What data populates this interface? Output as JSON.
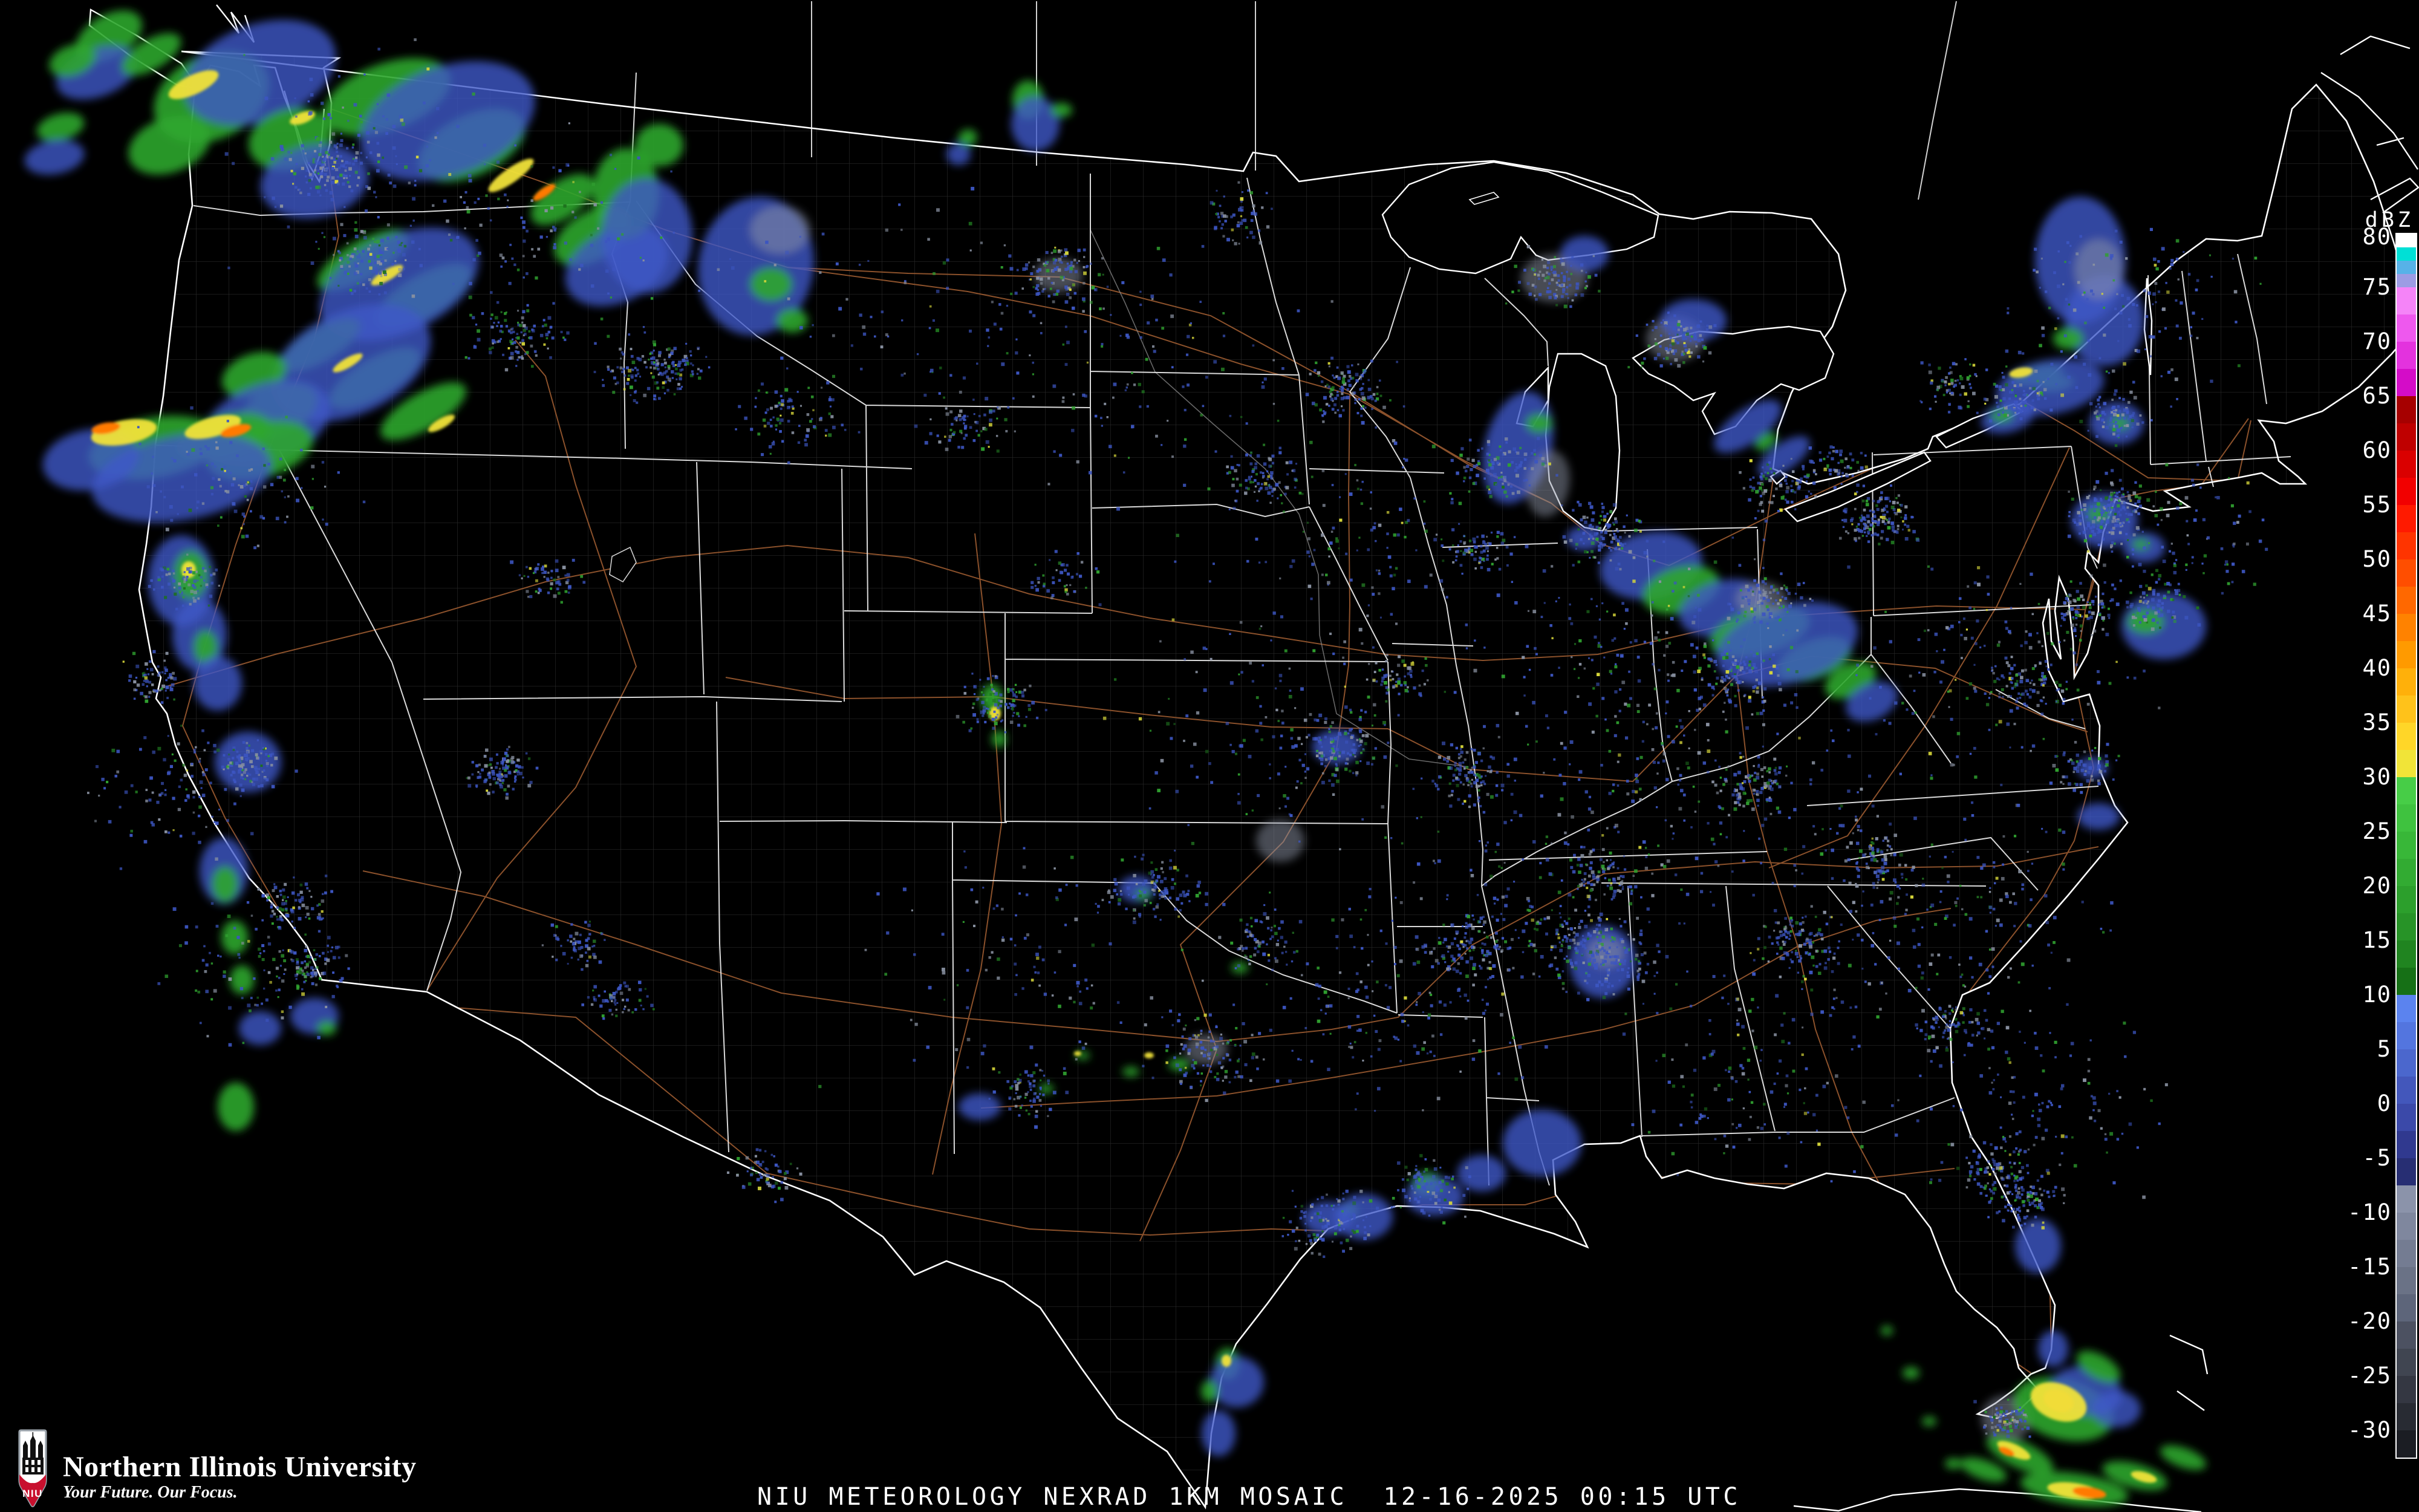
{
  "caption": {
    "text": "NIU METEOROLOGY NEXRAD 1KM MOSAIC  12-16-2025 00:15 UTC"
  },
  "branding": {
    "institution": "Northern Illinois University",
    "tagline": "Your Future. Our Focus.",
    "monogram": "NIU"
  },
  "colorbar": {
    "label": "dBZ",
    "ticks": [
      80,
      75,
      70,
      65,
      60,
      55,
      50,
      45,
      40,
      35,
      30,
      25,
      20,
      15,
      10,
      5,
      0,
      -5,
      -10,
      -15,
      -20,
      -25,
      -30
    ],
    "segments": [
      {
        "color": "#ffffff",
        "h": 22
      },
      {
        "color": "#00e0d6",
        "h": 22
      },
      {
        "color": "#57b2e8",
        "h": 22
      },
      {
        "color": "#9c9ce4",
        "h": 22
      },
      {
        "color": "#f584f8",
        "h": 45
      },
      {
        "color": "#ee58ee",
        "h": 45
      },
      {
        "color": "#e332de",
        "h": 45
      },
      {
        "color": "#d40cc8",
        "h": 45
      },
      {
        "color": "#a60000",
        "h": 45
      },
      {
        "color": "#bf0000",
        "h": 45
      },
      {
        "color": "#da0000",
        "h": 45
      },
      {
        "color": "#f20000",
        "h": 45
      },
      {
        "color": "#ff1a00",
        "h": 45
      },
      {
        "color": "#ff3400",
        "h": 45
      },
      {
        "color": "#ff4e00",
        "h": 45
      },
      {
        "color": "#ff6800",
        "h": 45
      },
      {
        "color": "#ff8200",
        "h": 45
      },
      {
        "color": "#ff9a00",
        "h": 45
      },
      {
        "color": "#ffb00a",
        "h": 45
      },
      {
        "color": "#ffc21a",
        "h": 45
      },
      {
        "color": "#ffd628",
        "h": 45
      },
      {
        "color": "#f1e438",
        "h": 45
      },
      {
        "color": "#47cd47",
        "h": 45
      },
      {
        "color": "#3fc23f",
        "h": 45
      },
      {
        "color": "#38b738",
        "h": 45
      },
      {
        "color": "#32ab32",
        "h": 45
      },
      {
        "color": "#2c9f2c",
        "h": 45
      },
      {
        "color": "#279327",
        "h": 45
      },
      {
        "color": "#208420",
        "h": 45
      },
      {
        "color": "#167016",
        "h": 45
      },
      {
        "color": "#5b83ef",
        "h": 45
      },
      {
        "color": "#5375df",
        "h": 45
      },
      {
        "color": "#4b67cd",
        "h": 45
      },
      {
        "color": "#4357bb",
        "h": 45
      },
      {
        "color": "#3b49a9",
        "h": 45
      },
      {
        "color": "#30398f",
        "h": 45
      },
      {
        "color": "#272e73",
        "h": 45
      },
      {
        "color": "#8b93aa",
        "h": 45
      },
      {
        "color": "#7f879e",
        "h": 45
      },
      {
        "color": "#747c92",
        "h": 45
      },
      {
        "color": "#6a7286",
        "h": 45
      },
      {
        "color": "#5d657a",
        "h": 45
      },
      {
        "color": "#4c5161",
        "h": 45
      },
      {
        "color": "#404551",
        "h": 45
      },
      {
        "color": "#343742",
        "h": 45
      },
      {
        "color": "#282b33",
        "h": 45
      },
      {
        "color": "#1b1d23",
        "h": 45
      }
    ]
  },
  "map_colors": {
    "background": "#000000",
    "coastline": "#ffffff",
    "state_border": "#ededed",
    "county_line": "#5f5f5f",
    "highway": "#9b5a30",
    "echo_green": "#2fa62f",
    "echo_blue": "#4057c8",
    "echo_yellow": "#f0e13a",
    "echo_orange": "#ff7a00",
    "clutter_gray": "#8f96a8"
  }
}
